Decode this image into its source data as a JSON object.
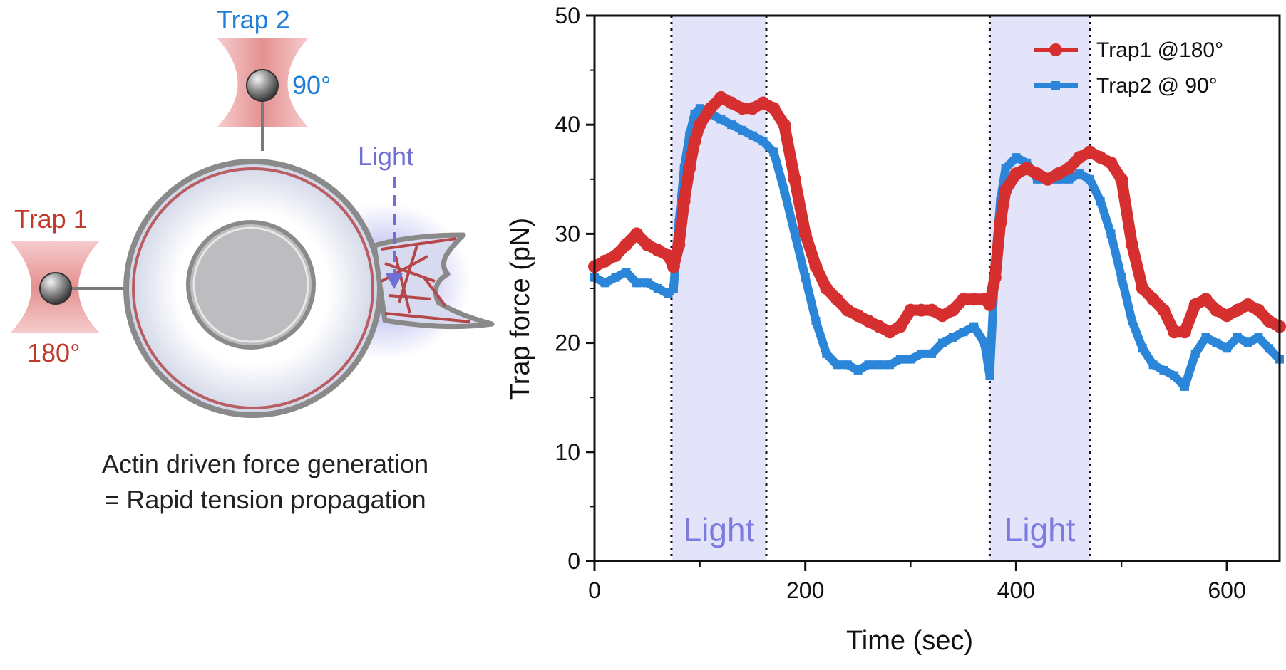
{
  "diagram": {
    "trap1_label": "Trap 1",
    "trap1_angle": "180°",
    "trap2_label": "Trap 2",
    "trap2_angle": "90°",
    "light_label": "Light",
    "caption_line1": "Actin driven force generation",
    "caption_line2": "= Rapid tension propagation",
    "colors": {
      "trap1": "#c0392b",
      "trap2": "#1f7fd6",
      "light": "#6f6fd6",
      "actin": "#b5474a"
    }
  },
  "chart_data": {
    "type": "line",
    "xlabel": "Time (sec)",
    "ylabel": "Trap force (pN)",
    "xlim": [
      0,
      650
    ],
    "ylim": [
      0,
      50
    ],
    "xticks": [
      0,
      200,
      400,
      600
    ],
    "yticks": [
      0,
      10,
      20,
      30,
      40,
      50
    ],
    "legend_position": "top-right",
    "bands": [
      {
        "x0": 73,
        "x1": 163,
        "label": "Light"
      },
      {
        "x0": 375,
        "x1": 470,
        "label": "Light"
      }
    ],
    "series": [
      {
        "name": "Trap1 @180°",
        "color": "#d62f2f",
        "marker": "circle",
        "x": [
          0,
          10,
          20,
          30,
          40,
          50,
          60,
          70,
          75,
          80,
          85,
          90,
          95,
          100,
          110,
          120,
          130,
          140,
          150,
          160,
          170,
          180,
          190,
          200,
          210,
          220,
          230,
          240,
          250,
          260,
          270,
          280,
          290,
          300,
          310,
          320,
          330,
          340,
          350,
          360,
          370,
          375,
          380,
          385,
          390,
          400,
          410,
          420,
          430,
          440,
          450,
          460,
          470,
          480,
          490,
          500,
          510,
          520,
          530,
          540,
          550,
          560,
          570,
          580,
          590,
          600,
          610,
          620,
          630,
          640,
          650
        ],
        "y": [
          27,
          27.5,
          28,
          29,
          30,
          29,
          28.5,
          28,
          27,
          29,
          33,
          36,
          38.5,
          40,
          41.5,
          42.5,
          42,
          41.5,
          41.5,
          42,
          41.5,
          40,
          35,
          30,
          27,
          25,
          24,
          23,
          22.5,
          22,
          21.5,
          21,
          21.5,
          23,
          23,
          23,
          22.5,
          23,
          24,
          24,
          24,
          23.5,
          26,
          31,
          34,
          35.5,
          36,
          35.5,
          35,
          35.5,
          36,
          37,
          37.5,
          37,
          36.5,
          35,
          29,
          25,
          24,
          23,
          21,
          21,
          23.5,
          24,
          23,
          22.5,
          23,
          23.5,
          23,
          22,
          21.5
        ]
      },
      {
        "name": "Trap2 @ 90°",
        "color": "#2b86d9",
        "marker": "square",
        "x": [
          0,
          10,
          20,
          30,
          40,
          50,
          60,
          70,
          75,
          80,
          85,
          90,
          95,
          100,
          110,
          120,
          130,
          140,
          150,
          160,
          170,
          180,
          190,
          200,
          210,
          220,
          230,
          240,
          250,
          260,
          270,
          280,
          290,
          300,
          310,
          320,
          330,
          340,
          350,
          360,
          370,
          375,
          380,
          385,
          390,
          400,
          410,
          420,
          430,
          440,
          450,
          460,
          470,
          480,
          490,
          500,
          510,
          520,
          530,
          540,
          550,
          560,
          570,
          580,
          590,
          600,
          610,
          620,
          630,
          640,
          650
        ],
        "y": [
          26,
          25.5,
          26,
          26.5,
          25.5,
          25.5,
          25,
          24.5,
          25,
          31,
          36,
          39,
          41,
          41.5,
          41,
          40.5,
          40,
          39.5,
          39,
          38.5,
          37.5,
          34,
          30,
          26,
          22,
          19,
          18,
          18,
          17.5,
          18,
          18,
          18,
          18.5,
          18.5,
          19,
          19,
          20,
          20.5,
          21,
          21.5,
          20,
          17,
          27,
          33,
          36,
          37,
          36.5,
          35,
          35,
          35,
          35,
          35.5,
          35,
          33,
          30,
          26,
          22,
          19.5,
          18,
          17.5,
          17,
          16,
          19,
          20.5,
          20,
          19.5,
          20.5,
          20,
          20.5,
          19.5,
          18.5
        ]
      }
    ]
  }
}
